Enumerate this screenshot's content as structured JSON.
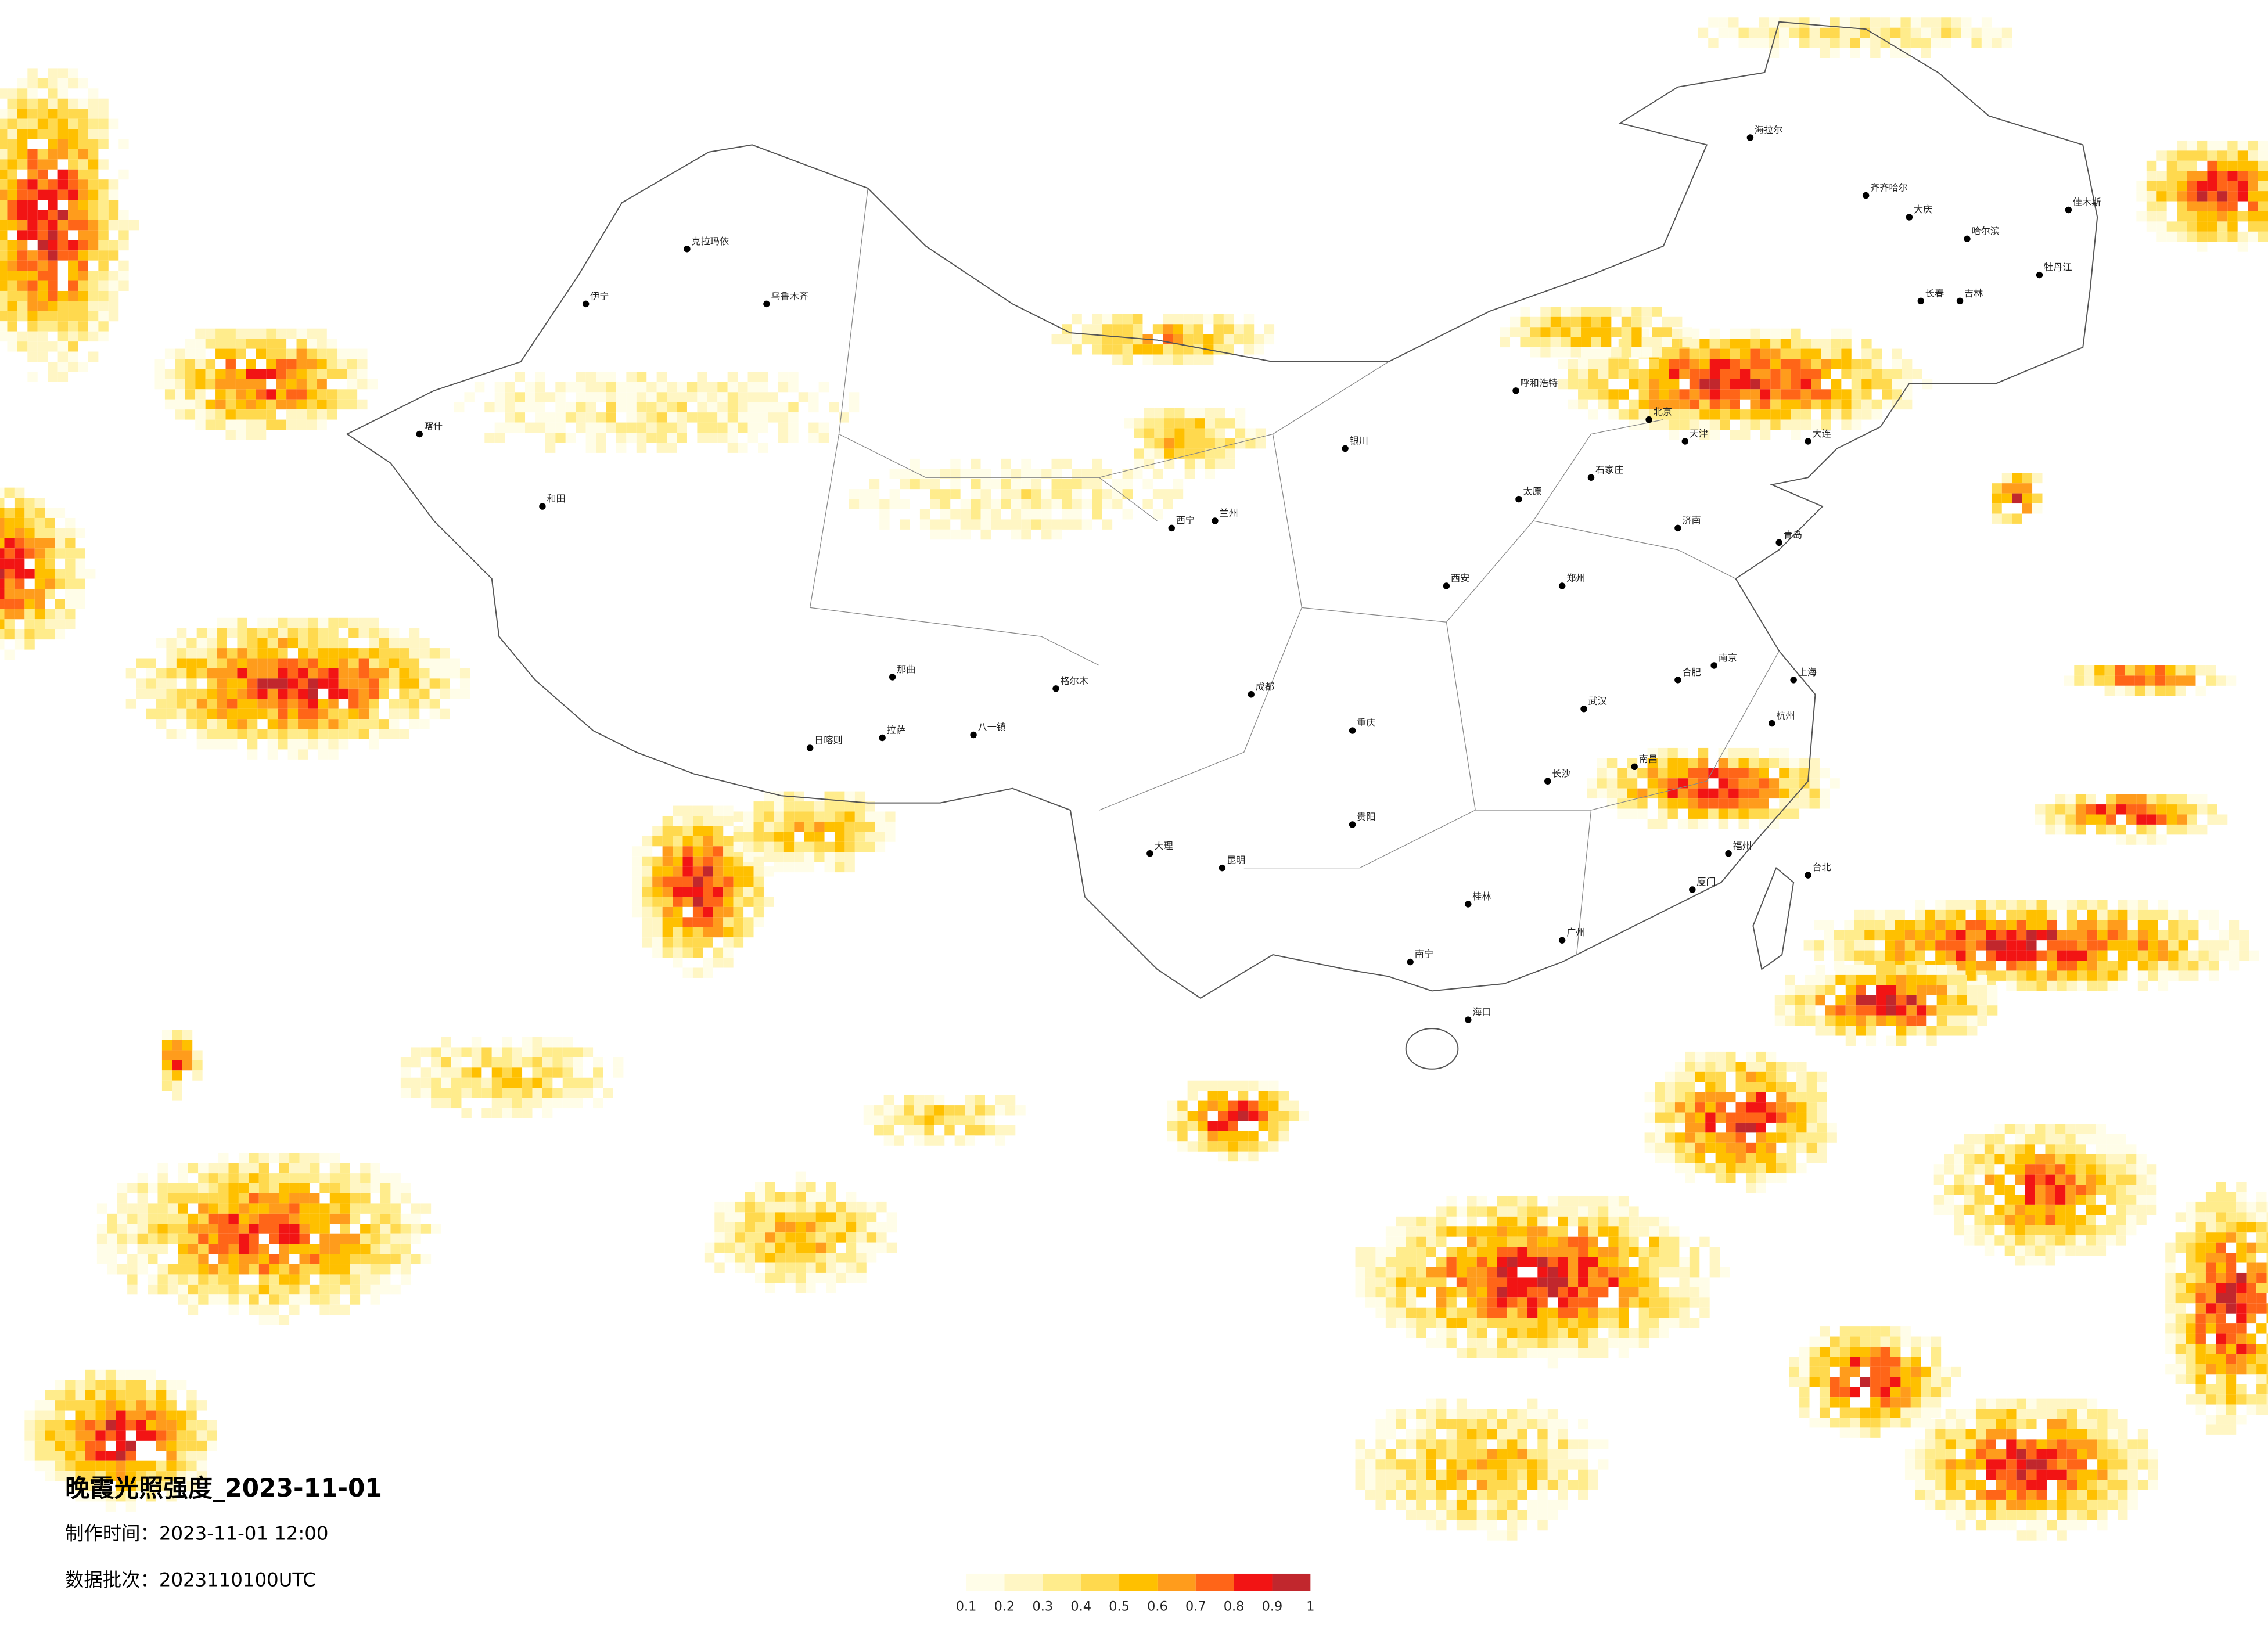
{
  "title": "晚霞光照强度_2023-11-01",
  "made_time": "制作时间：2023-11-01 12:00",
  "batch": "数据批次：2023110100UTC",
  "legend": {
    "ticks": [
      0.1,
      0.2,
      0.3,
      0.4,
      0.5,
      0.6,
      0.7,
      0.8,
      0.9,
      1
    ],
    "colors": [
      "#fffde8",
      "#fff6c4",
      "#ffec8c",
      "#ffd94e",
      "#ffc000",
      "#ff9c1c",
      "#ff6518",
      "#f21414",
      "#c1272d"
    ]
  },
  "cities": [
    "北京",
    "天津",
    "上海",
    "广州",
    "西安",
    "成都",
    "重庆",
    "武汉",
    "乌鲁木齐",
    "拉萨",
    "哈尔滨",
    "长春",
    "吉林",
    "呼和浩特",
    "兰州",
    "西宁",
    "昆明",
    "贵阳",
    "南宁",
    "海口",
    "台北",
    "福州",
    "杭州",
    "南京",
    "合肥",
    "郑州",
    "济南",
    "石家庄",
    "太原",
    "银川",
    "喀什",
    "和田",
    "伊宁",
    "克拉玛依",
    "海拉尔",
    "齐齐哈尔",
    "大庆",
    "大连",
    "青岛",
    "长沙",
    "南昌",
    "日喀则",
    "八一镇",
    "格尔木",
    "那曲",
    "大理",
    "桂林",
    "厦门",
    "牡丹江",
    "佳木斯"
  ]
}
